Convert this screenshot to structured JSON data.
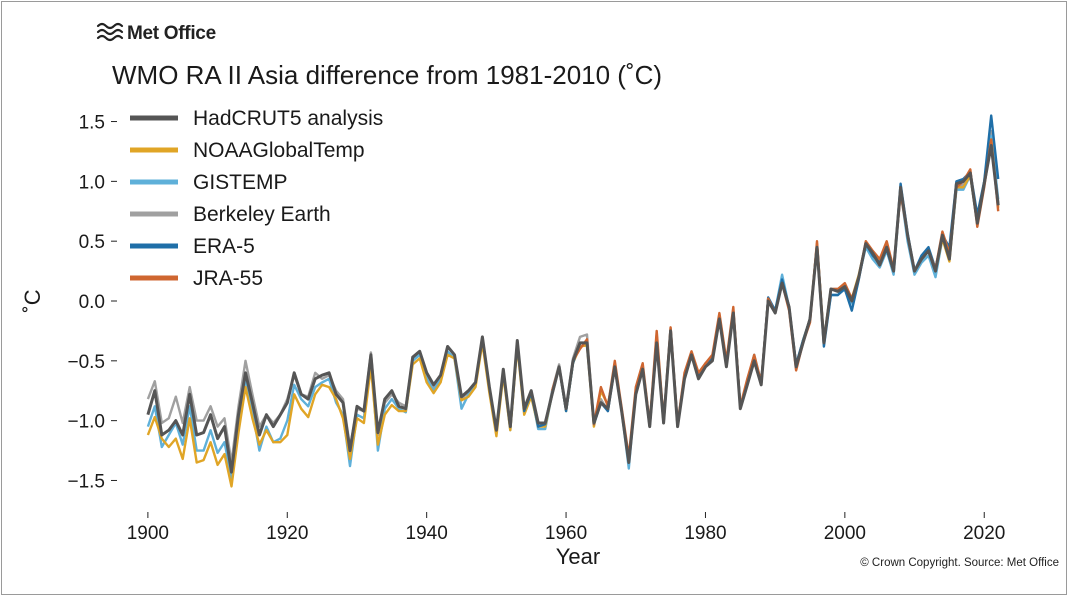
{
  "brand": {
    "name": "Met Office"
  },
  "credit": "© Crown Copyright. Source: Met Office",
  "chart_data": {
    "type": "line",
    "title": "WMO RA II Asia difference from 1981-2010 (˚C)",
    "xlabel": "Year",
    "ylabel": "˚C",
    "xlim": [
      1896,
      2028
    ],
    "ylim": [
      -1.68,
      1.68
    ],
    "x_ticks": [
      1900,
      1920,
      1940,
      1960,
      1980,
      2000,
      2020
    ],
    "y_ticks": [
      1.5,
      1.0,
      0.5,
      0.0,
      -0.5,
      -1.0,
      -1.5
    ],
    "x_tick_labels": [
      "1900",
      "1920",
      "1940",
      "1960",
      "1980",
      "2000",
      "2020"
    ],
    "y_tick_labels": [
      "1.5",
      "1.0",
      "0.5",
      "0.0",
      "−0.5",
      "−1.0",
      "−1.5"
    ],
    "grid": false,
    "legend": "top-left",
    "series": [
      {
        "name": "HadCRUT5 analysis",
        "color": "#555555",
        "start": 1900,
        "values": [
          -0.95,
          -0.75,
          -1.12,
          -1.08,
          -1.0,
          -1.12,
          -0.78,
          -1.12,
          -1.1,
          -0.95,
          -1.15,
          -1.05,
          -1.43,
          -0.95,
          -0.6,
          -0.85,
          -1.12,
          -0.95,
          -1.05,
          -0.95,
          -0.85,
          -0.6,
          -0.78,
          -0.82,
          -0.65,
          -0.62,
          -0.6,
          -0.78,
          -0.85,
          -1.25,
          -0.88,
          -0.92,
          -0.45,
          -1.1,
          -0.82,
          -0.75,
          -0.88,
          -0.9,
          -0.47,
          -0.42,
          -0.6,
          -0.7,
          -0.62,
          -0.38,
          -0.45,
          -0.8,
          -0.75,
          -0.68,
          -0.3,
          -0.72,
          -1.08,
          -0.57,
          -1.05,
          -0.33,
          -0.9,
          -0.75,
          -1.02,
          -1.02,
          -0.78,
          -0.55,
          -0.9,
          -0.5,
          -0.35,
          -0.35,
          -1.02,
          -0.85,
          -0.9,
          -0.55,
          -0.93,
          -1.35,
          -0.78,
          -0.57,
          -1.05,
          -0.35,
          -1.02,
          -0.25,
          -1.05,
          -0.65,
          -0.45,
          -0.65,
          -0.55,
          -0.5,
          -0.15,
          -0.55,
          -0.1,
          -0.9,
          -0.7,
          -0.5,
          -0.7,
          0.0,
          -0.1,
          0.15,
          -0.05,
          -0.55,
          -0.35,
          -0.15,
          0.45,
          -0.35,
          0.1,
          0.08,
          0.12,
          0.0,
          0.2,
          0.48,
          0.4,
          0.3,
          0.45,
          0.25,
          0.95,
          0.55,
          0.25,
          0.35,
          0.42,
          0.25,
          0.55,
          0.35,
          0.98,
          1.0,
          1.07,
          0.65,
          0.98,
          1.3,
          0.8
        ]
      },
      {
        "name": "NOAAGlobalTemp",
        "color": "#e0a526",
        "start": 1900,
        "values": [
          -1.12,
          -0.97,
          -1.15,
          -1.22,
          -1.15,
          -1.32,
          -0.98,
          -1.35,
          -1.33,
          -1.18,
          -1.37,
          -1.28,
          -1.55,
          -1.1,
          -0.72,
          -0.98,
          -1.2,
          -1.08,
          -1.18,
          -1.18,
          -1.12,
          -0.78,
          -0.9,
          -0.97,
          -0.78,
          -0.7,
          -0.72,
          -0.82,
          -0.98,
          -1.32,
          -0.98,
          -1.02,
          -0.55,
          -1.2,
          -0.95,
          -0.87,
          -0.92,
          -0.92,
          -0.53,
          -0.48,
          -0.68,
          -0.77,
          -0.68,
          -0.45,
          -0.48,
          -0.83,
          -0.8,
          -0.72,
          -0.35,
          -0.77,
          -1.13,
          -0.62,
          -1.08,
          -0.38,
          -0.95,
          -0.8,
          -1.05,
          -1.05,
          -0.78,
          -0.55,
          -0.92,
          -0.52,
          -0.38,
          -0.37,
          -1.05,
          -0.75,
          -0.87,
          -0.55,
          -0.92,
          -1.35,
          -0.75,
          -0.55,
          -1.05,
          -0.28,
          -1.02,
          -0.25,
          -1.05,
          -0.62,
          -0.45,
          -0.62,
          -0.55,
          -0.48,
          -0.12,
          -0.52,
          -0.08,
          -0.88,
          -0.68,
          -0.48,
          -0.7,
          0.02,
          -0.08,
          0.15,
          -0.05,
          -0.55,
          -0.33,
          -0.15,
          0.48,
          -0.33,
          0.1,
          0.08,
          0.12,
          0.02,
          0.22,
          0.48,
          0.4,
          0.32,
          0.47,
          0.27,
          0.95,
          0.55,
          0.25,
          0.35,
          0.42,
          0.25,
          0.52,
          0.33,
          0.95,
          0.95,
          1.05,
          0.65,
          0.98,
          1.35,
          0.78
        ]
      },
      {
        "name": "GISTEMP",
        "color": "#5fb0d9",
        "start": 1900,
        "values": [
          -1.05,
          -0.88,
          -1.22,
          -1.12,
          -1.02,
          -1.2,
          -0.88,
          -1.25,
          -1.25,
          -1.08,
          -1.27,
          -1.18,
          -1.48,
          -1.02,
          -0.65,
          -0.92,
          -1.25,
          -1.05,
          -1.18,
          -1.15,
          -1.0,
          -0.7,
          -0.82,
          -0.88,
          -0.72,
          -0.68,
          -0.65,
          -0.85,
          -0.95,
          -1.38,
          -0.95,
          -0.98,
          -0.48,
          -1.25,
          -0.9,
          -0.82,
          -0.9,
          -0.93,
          -0.5,
          -0.45,
          -0.65,
          -0.75,
          -0.65,
          -0.42,
          -0.48,
          -0.9,
          -0.78,
          -0.7,
          -0.32,
          -0.75,
          -1.1,
          -0.6,
          -1.08,
          -0.35,
          -0.92,
          -0.77,
          -1.07,
          -1.07,
          -0.78,
          -0.55,
          -0.92,
          -0.52,
          -0.35,
          -0.35,
          -1.03,
          -0.85,
          -0.9,
          -0.55,
          -0.93,
          -1.4,
          -0.75,
          -0.55,
          -1.05,
          -0.35,
          -1.0,
          -0.25,
          -1.03,
          -0.62,
          -0.45,
          -0.62,
          -0.55,
          -0.48,
          -0.12,
          -0.52,
          -0.08,
          -0.88,
          -0.68,
          -0.45,
          -0.68,
          0.02,
          -0.08,
          0.22,
          -0.05,
          -0.55,
          -0.33,
          -0.15,
          0.45,
          -0.35,
          0.05,
          0.05,
          0.12,
          -0.02,
          0.2,
          0.45,
          0.35,
          0.28,
          0.42,
          0.22,
          0.92,
          0.5,
          0.22,
          0.32,
          0.38,
          0.2,
          0.52,
          0.35,
          0.93,
          0.93,
          1.05,
          0.65,
          0.98,
          1.38,
          0.85
        ]
      },
      {
        "name": "Berkeley Earth",
        "color": "#a0a0a0",
        "start": 1900,
        "values": [
          -0.82,
          -0.67,
          -1.02,
          -0.98,
          -0.8,
          -1.02,
          -0.72,
          -1.0,
          -1.0,
          -0.88,
          -1.05,
          -0.98,
          -1.35,
          -0.88,
          -0.5,
          -0.78,
          -1.05,
          -0.95,
          -1.02,
          -0.95,
          -0.82,
          -0.62,
          -0.78,
          -0.8,
          -0.6,
          -0.65,
          -0.62,
          -0.75,
          -0.82,
          -1.22,
          -0.9,
          -0.92,
          -0.43,
          -1.12,
          -0.85,
          -0.78,
          -0.85,
          -0.88,
          -0.48,
          -0.42,
          -0.62,
          -0.72,
          -0.63,
          -0.38,
          -0.45,
          -0.82,
          -0.76,
          -0.68,
          -0.3,
          -0.72,
          -1.1,
          -0.58,
          -1.05,
          -0.33,
          -0.92,
          -0.76,
          -1.03,
          -1.03,
          -0.75,
          -0.53,
          -0.9,
          -0.48,
          -0.3,
          -0.28,
          -1.03,
          -0.82,
          -0.92,
          -0.52,
          -0.92,
          -1.35,
          -0.75,
          -0.55,
          -1.05,
          -0.33,
          -1.02,
          -0.23,
          -1.05,
          -0.62,
          -0.45,
          -0.62,
          -0.52,
          -0.48,
          -0.13,
          -0.52,
          -0.08,
          -0.88,
          -0.68,
          -0.48,
          -0.7,
          0.02,
          -0.08,
          0.17,
          -0.05,
          -0.53,
          -0.33,
          -0.15,
          0.47,
          -0.33,
          0.1,
          0.1,
          0.13,
          0.0,
          0.2,
          0.47,
          0.38,
          0.3,
          0.43,
          0.25,
          0.93,
          0.53,
          0.23,
          0.35,
          0.42,
          0.22,
          0.55,
          0.35,
          0.95,
          0.97,
          1.05,
          0.65,
          1.0,
          1.42,
          0.82
        ]
      },
      {
        "name": "ERA-5",
        "color": "#1f6fa8",
        "start": 1950,
        "values": [
          -1.08,
          -0.58,
          -1.05,
          -0.35,
          -0.92,
          -0.77,
          -1.05,
          -1.03,
          -0.77,
          -0.55,
          -0.92,
          -0.52,
          -0.35,
          -0.35,
          -1.03,
          -0.85,
          -0.92,
          -0.55,
          -0.93,
          -1.35,
          -0.77,
          -0.57,
          -1.05,
          -0.35,
          -1.02,
          -0.25,
          -1.05,
          -0.63,
          -0.45,
          -0.63,
          -0.55,
          -0.48,
          -0.13,
          -0.52,
          -0.08,
          -0.88,
          -0.68,
          -0.48,
          -0.7,
          0.03,
          -0.08,
          0.18,
          -0.05,
          -0.53,
          -0.33,
          -0.15,
          0.45,
          -0.38,
          0.05,
          0.05,
          0.1,
          -0.08,
          0.18,
          0.48,
          0.38,
          0.32,
          0.43,
          0.25,
          0.98,
          0.57,
          0.25,
          0.38,
          0.45,
          0.27,
          0.55,
          0.45,
          1.0,
          1.02,
          1.08,
          0.72,
          1.0,
          1.55,
          1.02
        ]
      },
      {
        "name": "JRA-55",
        "color": "#cf6630",
        "start": 1958,
        "values": [
          -0.75,
          -0.55,
          -0.9,
          -0.5,
          -0.4,
          -0.32,
          -1.03,
          -0.72,
          -0.88,
          -0.5,
          -0.9,
          -1.3,
          -0.72,
          -0.52,
          -1.03,
          -0.25,
          -1.0,
          -0.22,
          -1.03,
          -0.6,
          -0.42,
          -0.6,
          -0.52,
          -0.45,
          -0.1,
          -0.5,
          -0.05,
          -0.88,
          -0.65,
          -0.45,
          -0.68,
          0.02,
          -0.1,
          0.15,
          -0.08,
          -0.58,
          -0.35,
          -0.18,
          0.5,
          -0.35,
          0.1,
          0.1,
          0.15,
          0.02,
          0.2,
          0.5,
          0.42,
          0.35,
          0.5,
          0.27,
          0.9,
          0.55,
          0.25,
          0.35,
          0.42,
          0.27,
          0.58,
          0.4,
          0.95,
          1.0,
          1.1,
          0.62,
          0.95,
          1.35,
          0.75
        ]
      }
    ]
  }
}
